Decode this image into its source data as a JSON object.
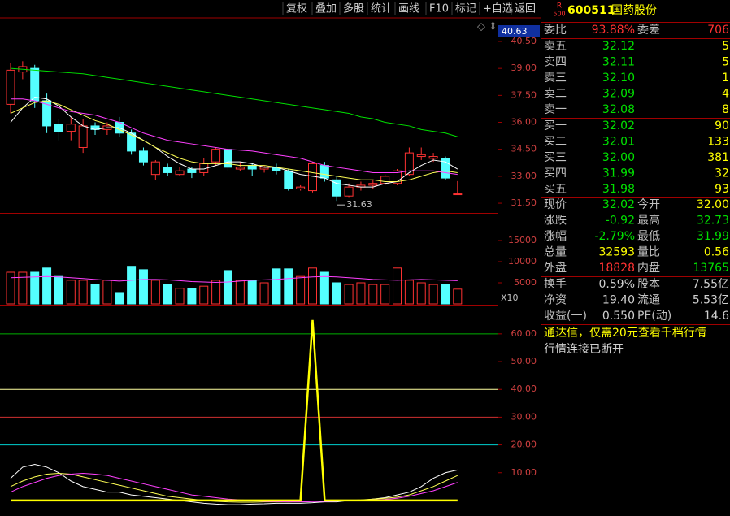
{
  "toolbar": [
    "复权",
    "叠加",
    "多股",
    "统计",
    "画线",
    "F10",
    "标记",
    "+自选",
    "返回"
  ],
  "quote": {
    "badge_top": "R",
    "badge_bottom": "500",
    "code": "600511",
    "name": "国药股份",
    "ratio_row": [
      "委比",
      "93.88%",
      "委差",
      "706"
    ],
    "sell": [
      [
        "卖五",
        "32.12",
        "5"
      ],
      [
        "卖四",
        "32.11",
        "5"
      ],
      [
        "卖三",
        "32.10",
        "1"
      ],
      [
        "卖二",
        "32.09",
        "4"
      ],
      [
        "卖一",
        "32.08",
        "8"
      ]
    ],
    "buy": [
      [
        "买一",
        "32.02",
        "90"
      ],
      [
        "买二",
        "32.01",
        "133"
      ],
      [
        "买三",
        "32.00",
        "381"
      ],
      [
        "买四",
        "31.99",
        "32"
      ],
      [
        "买五",
        "31.98",
        "93"
      ]
    ],
    "stats": [
      [
        "现价",
        "32.02",
        "今开",
        "32.00"
      ],
      [
        "涨跌",
        "-0.92",
        "最高",
        "32.73"
      ],
      [
        "涨幅",
        "-2.79%",
        "最低",
        "31.99"
      ],
      [
        "总量",
        "32593",
        "量比",
        "0.56"
      ],
      [
        "外盘",
        "18828",
        "内盘",
        "13765"
      ]
    ],
    "finance": [
      [
        "换手",
        "0.59%",
        "股本",
        "7.55亿"
      ],
      [
        "净资",
        "19.40",
        "流通",
        "5.53亿"
      ],
      [
        "收益(一)",
        "0.550",
        "PE(动)",
        "14.6"
      ]
    ],
    "promo": "通达信，仅需20元查看千档行情",
    "status": "行情连接已断开"
  },
  "chart_data": [
    {
      "type": "candlestick",
      "axis_top_label": "40.63",
      "low_marker_label": "31.63",
      "up_color": "#ff3232",
      "down_color": "#54ffff",
      "open": [
        37.0,
        38.8,
        39.0,
        37.2,
        35.9,
        35.5,
        34.6,
        35.8,
        35.6,
        36.0,
        35.4,
        34.4,
        33.1,
        33.5,
        33.1,
        33.4,
        33.2,
        33.8,
        34.5,
        33.4,
        33.6,
        33.4,
        33.5,
        33.3,
        32.3,
        32.2,
        33.6,
        32.8,
        31.9,
        32.4,
        32.5,
        32.6,
        32.6,
        33.1,
        34.1,
        34.0,
        34.0,
        32.0
      ],
      "high": [
        39.3,
        39.4,
        39.2,
        37.6,
        36.2,
        36.3,
        36.2,
        36.0,
        36.0,
        36.3,
        35.6,
        34.6,
        33.9,
        33.7,
        33.5,
        33.5,
        34.0,
        34.6,
        34.7,
        33.8,
        33.7,
        33.6,
        33.7,
        33.4,
        32.5,
        33.8,
        33.8,
        33.0,
        32.6,
        32.7,
        32.8,
        33.1,
        33.4,
        34.6,
        34.6,
        34.3,
        34.1,
        32.73
      ],
      "low": [
        36.5,
        38.4,
        36.8,
        35.4,
        35.0,
        35.0,
        34.3,
        35.3,
        35.3,
        35.2,
        34.2,
        33.6,
        32.8,
        33.0,
        33.0,
        32.9,
        33.0,
        33.6,
        33.3,
        33.3,
        33.0,
        33.2,
        33.1,
        32.2,
        32.2,
        32.1,
        32.7,
        31.63,
        31.8,
        32.2,
        32.3,
        32.5,
        32.5,
        33.0,
        33.9,
        33.8,
        32.8,
        31.99
      ],
      "close": [
        38.9,
        39.1,
        37.2,
        35.8,
        35.5,
        35.9,
        35.8,
        35.6,
        35.8,
        35.4,
        34.4,
        33.8,
        33.8,
        33.2,
        33.3,
        33.2,
        33.7,
        34.5,
        33.5,
        33.5,
        33.4,
        33.5,
        33.3,
        32.3,
        32.4,
        33.7,
        32.9,
        31.9,
        32.4,
        32.5,
        32.6,
        33.0,
        33.3,
        34.3,
        34.2,
        34.1,
        32.9,
        32.02
      ],
      "series": [
        {
          "color": "#ffffff",
          "values": [
            36.0,
            36.8,
            37.4,
            37.3,
            36.9,
            36.3,
            35.8,
            35.6,
            35.7,
            35.7,
            35.4,
            35.0,
            34.6,
            34.1,
            33.7,
            33.4,
            33.4,
            33.6,
            33.8,
            33.8,
            33.7,
            33.5,
            33.5,
            33.3,
            33.1,
            33.0,
            32.9,
            32.6,
            32.5,
            32.4,
            32.4,
            32.6,
            32.7,
            33.2,
            33.6,
            33.9,
            33.8,
            33.4
          ]
        },
        {
          "color": "#ffff55",
          "values": [
            36.5,
            36.8,
            37.1,
            37.2,
            37.0,
            36.7,
            36.4,
            36.1,
            35.9,
            35.6,
            35.3,
            35.0,
            34.6,
            34.3,
            34.0,
            33.8,
            33.7,
            33.7,
            33.7,
            33.6,
            33.6,
            33.6,
            33.5,
            33.4,
            33.3,
            33.2,
            33.1,
            33.0,
            32.9,
            32.8,
            32.8,
            32.7,
            32.7,
            32.8,
            33.0,
            33.2,
            33.3,
            33.2
          ]
        },
        {
          "color": "#ff40ff",
          "values": [
            37.3,
            37.3,
            37.2,
            37.0,
            36.8,
            36.6,
            36.5,
            36.4,
            36.2,
            36.0,
            35.7,
            35.4,
            35.2,
            35.0,
            34.9,
            34.8,
            34.7,
            34.6,
            34.5,
            34.45,
            34.4,
            34.3,
            34.2,
            34.1,
            34.0,
            33.8,
            33.6,
            33.5,
            33.4,
            33.3,
            33.2,
            33.2,
            33.2,
            33.3,
            33.3,
            33.3,
            33.2,
            33.1
          ]
        },
        {
          "color": "#00e000",
          "values": [
            39.0,
            38.95,
            38.9,
            38.85,
            38.8,
            38.75,
            38.7,
            38.6,
            38.5,
            38.4,
            38.3,
            38.2,
            38.1,
            38.0,
            37.9,
            37.8,
            37.7,
            37.6,
            37.5,
            37.4,
            37.3,
            37.2,
            37.1,
            37.0,
            36.9,
            36.8,
            36.7,
            36.6,
            36.5,
            36.3,
            36.2,
            36.0,
            35.9,
            35.8,
            35.6,
            35.5,
            35.4,
            35.2
          ]
        }
      ],
      "ylim": [
        30.96,
        41.81
      ],
      "yticks": [
        {
          "value": 40.5,
          "label": "40.50"
        },
        {
          "value": 39,
          "label": "39.00"
        },
        {
          "value": 37.5,
          "label": "37.50"
        },
        {
          "value": 36,
          "label": "36.00"
        },
        {
          "value": 34.5,
          "label": "34.50"
        },
        {
          "value": 33,
          "label": "33.00"
        },
        {
          "value": 31.5,
          "label": "31.50"
        }
      ]
    },
    {
      "type": "bar",
      "unit_label": "X10",
      "values": [
        7500,
        7500,
        7500,
        8500,
        6500,
        5600,
        5600,
        4600,
        5600,
        2700,
        8900,
        8100,
        5600,
        4600,
        3700,
        3700,
        4200,
        5600,
        7900,
        5600,
        5600,
        5000,
        8300,
        8300,
        6500,
        8500,
        7500,
        5000,
        4600,
        5000,
        4600,
        4600,
        8500,
        5600,
        5000,
        4600,
        4600,
        3500
      ],
      "series": [
        {
          "color": "#ff40ff",
          "values": [
            6200,
            6300,
            6400,
            6500,
            6400,
            6200,
            6000,
            5800,
            5600,
            5400,
            5600,
            5800,
            5800,
            5700,
            5500,
            5300,
            5200,
            5100,
            5200,
            5400,
            5600,
            5700,
            5800,
            6000,
            6200,
            6400,
            6500,
            6400,
            6200,
            6000,
            5800,
            5700,
            5600,
            5700,
            5800,
            5700,
            5600,
            5500
          ]
        }
      ],
      "ylim": [
        0,
        21346
      ],
      "yticks": [
        15000,
        10000,
        5000
      ]
    },
    {
      "type": "line",
      "series": [
        {
          "color": "#ffffff",
          "values": [
            8,
            12,
            13,
            12,
            10,
            7,
            5,
            4,
            3,
            3,
            2,
            1.5,
            1,
            0.5,
            0,
            -0.5,
            -1,
            -1.3,
            -1.5,
            -1.5,
            -1.3,
            -1.2,
            -1,
            -1,
            -1,
            -0.8,
            -0.5,
            -0.5,
            0,
            0,
            0.5,
            1,
            2,
            3,
            5,
            8,
            10,
            11
          ]
        },
        {
          "color": "#ffff55",
          "values": [
            5,
            7,
            8.5,
            9.5,
            9.8,
            9.5,
            8.5,
            7.5,
            6.5,
            5.5,
            4.5,
            3.5,
            2.5,
            1.5,
            1,
            0.5,
            0,
            -0.3,
            -0.5,
            -0.6,
            -0.6,
            -0.5,
            -0.5,
            -0.5,
            -0.4,
            -0.3,
            -0.2,
            0,
            0,
            0.2,
            0.5,
            0.8,
            1.2,
            2,
            3.5,
            5,
            7,
            9
          ]
        },
        {
          "color": "#ff40ff",
          "values": [
            3,
            5,
            6.5,
            8,
            9,
            9.5,
            9.8,
            9.5,
            9,
            8,
            7,
            6,
            5,
            4,
            3,
            2,
            1.5,
            1,
            0.5,
            0.2,
            0,
            -0.3,
            -0.4,
            -0.5,
            -0.5,
            -0.4,
            -0.3,
            -0.2,
            0,
            0,
            0.2,
            0.4,
            0.8,
            1.5,
            2.5,
            3.5,
            5,
            6.5
          ]
        },
        {
          "color": "#ffff00",
          "width": 2.5,
          "values": [
            0,
            0,
            0,
            0,
            0,
            0,
            0,
            0,
            0,
            0,
            0,
            0,
            0,
            0,
            0,
            0,
            0,
            0,
            0,
            0,
            0,
            0,
            0,
            0,
            0,
            65,
            0,
            0,
            0,
            0,
            0,
            0,
            0,
            0,
            0,
            0,
            0,
            0
          ]
        }
      ],
      "reference_lines": [
        {
          "value": 60,
          "color": "#00b000"
        },
        {
          "value": 40,
          "color": "#ffffa0"
        },
        {
          "value": 30,
          "color": "#d03030"
        },
        {
          "value": 20,
          "color": "#00d0d0"
        }
      ],
      "ylim": [
        -4.7,
        70.2
      ],
      "yticks": [
        {
          "value": 60,
          "label": "60.00"
        },
        {
          "value": 50,
          "label": "50.00"
        },
        {
          "value": 40,
          "label": "40.00"
        },
        {
          "value": 30,
          "label": "30.00"
        },
        {
          "value": 20,
          "label": "20.00"
        },
        {
          "value": 10,
          "label": "10.00"
        }
      ]
    }
  ]
}
